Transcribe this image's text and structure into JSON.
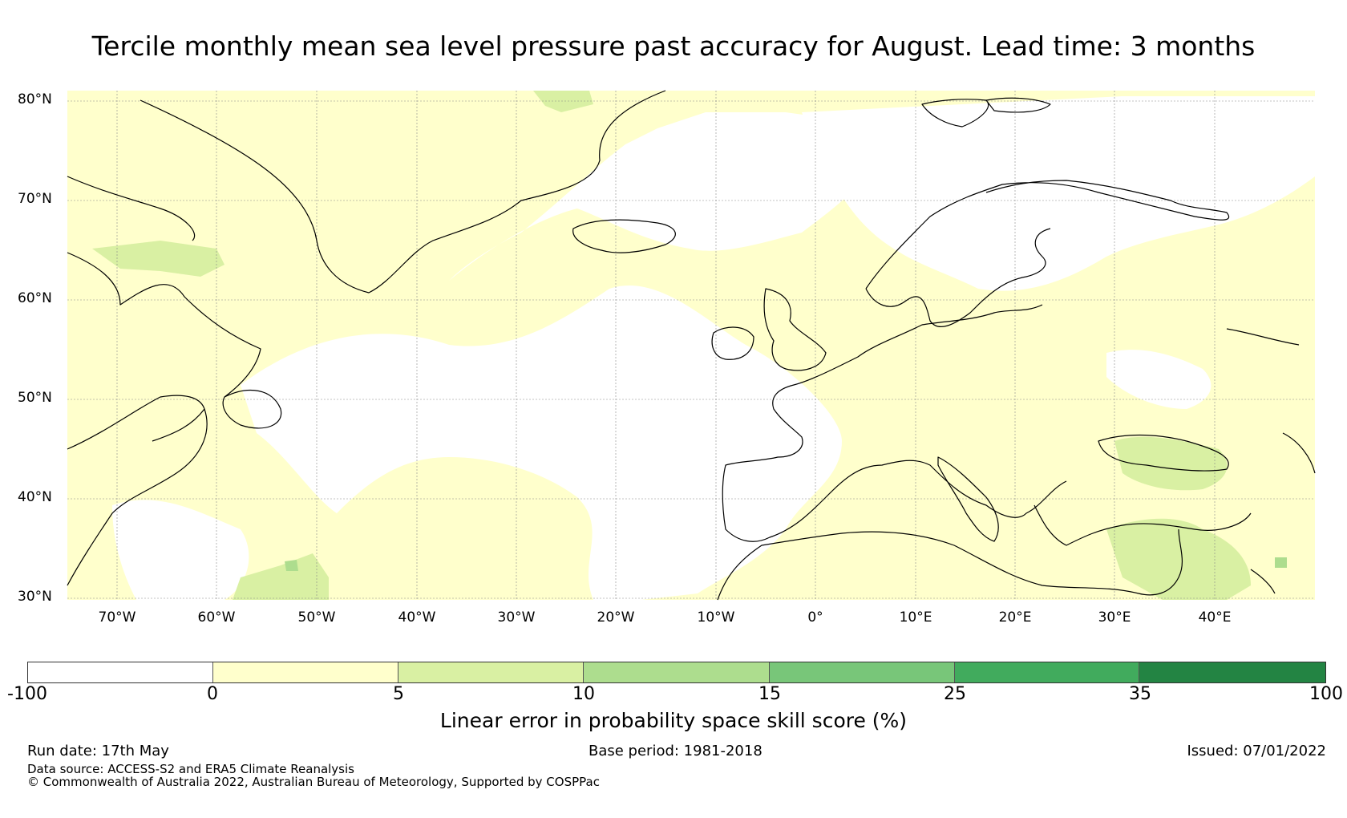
{
  "title": "Tercile monthly mean sea level pressure past accuracy for August. Lead time: 3 months",
  "map": {
    "lat_labels": [
      "80°N",
      "70°N",
      "60°N",
      "50°N",
      "40°N",
      "30°N"
    ],
    "lon_labels": [
      "70°W",
      "60°W",
      "50°W",
      "40°W",
      "30°W",
      "20°W",
      "10°W",
      "0°",
      "10°E",
      "20°E",
      "30°E",
      "40°E"
    ],
    "extent": {
      "lon_min": -75,
      "lon_max": 50,
      "lat_min": 30,
      "lat_max": 81
    },
    "background_skill": "0-5",
    "ocean_color": "#ffffff",
    "coastline_color": "#000000"
  },
  "colorbar": {
    "ticks": [
      "-100",
      "0",
      "5",
      "10",
      "15",
      "25",
      "35",
      "100"
    ],
    "segments": [
      {
        "from": "-100",
        "to": "0",
        "color": "#ffffff"
      },
      {
        "from": "0",
        "to": "5",
        "color": "#ffffcc"
      },
      {
        "from": "5",
        "to": "10",
        "color": "#d9f0a3"
      },
      {
        "from": "10",
        "to": "15",
        "color": "#addd8e"
      },
      {
        "from": "15",
        "to": "25",
        "color": "#78c679"
      },
      {
        "from": "25",
        "to": "35",
        "color": "#41ab5d"
      },
      {
        "from": "35",
        "to": "100",
        "color": "#238443"
      }
    ],
    "label": "Linear error in probability space skill score (%)"
  },
  "footer": {
    "run_date": "Run date: 17th May",
    "base_period": "Base period: 1981-2018",
    "issued": "Issued: 07/01/2022",
    "data_source": "Data source: ACCESS-S2 and ERA5 Climate Reanalysis",
    "copyright": "© Commonwealth of Australia 2022, Australian Bureau of Meteorology, Supported by COSPPac"
  }
}
